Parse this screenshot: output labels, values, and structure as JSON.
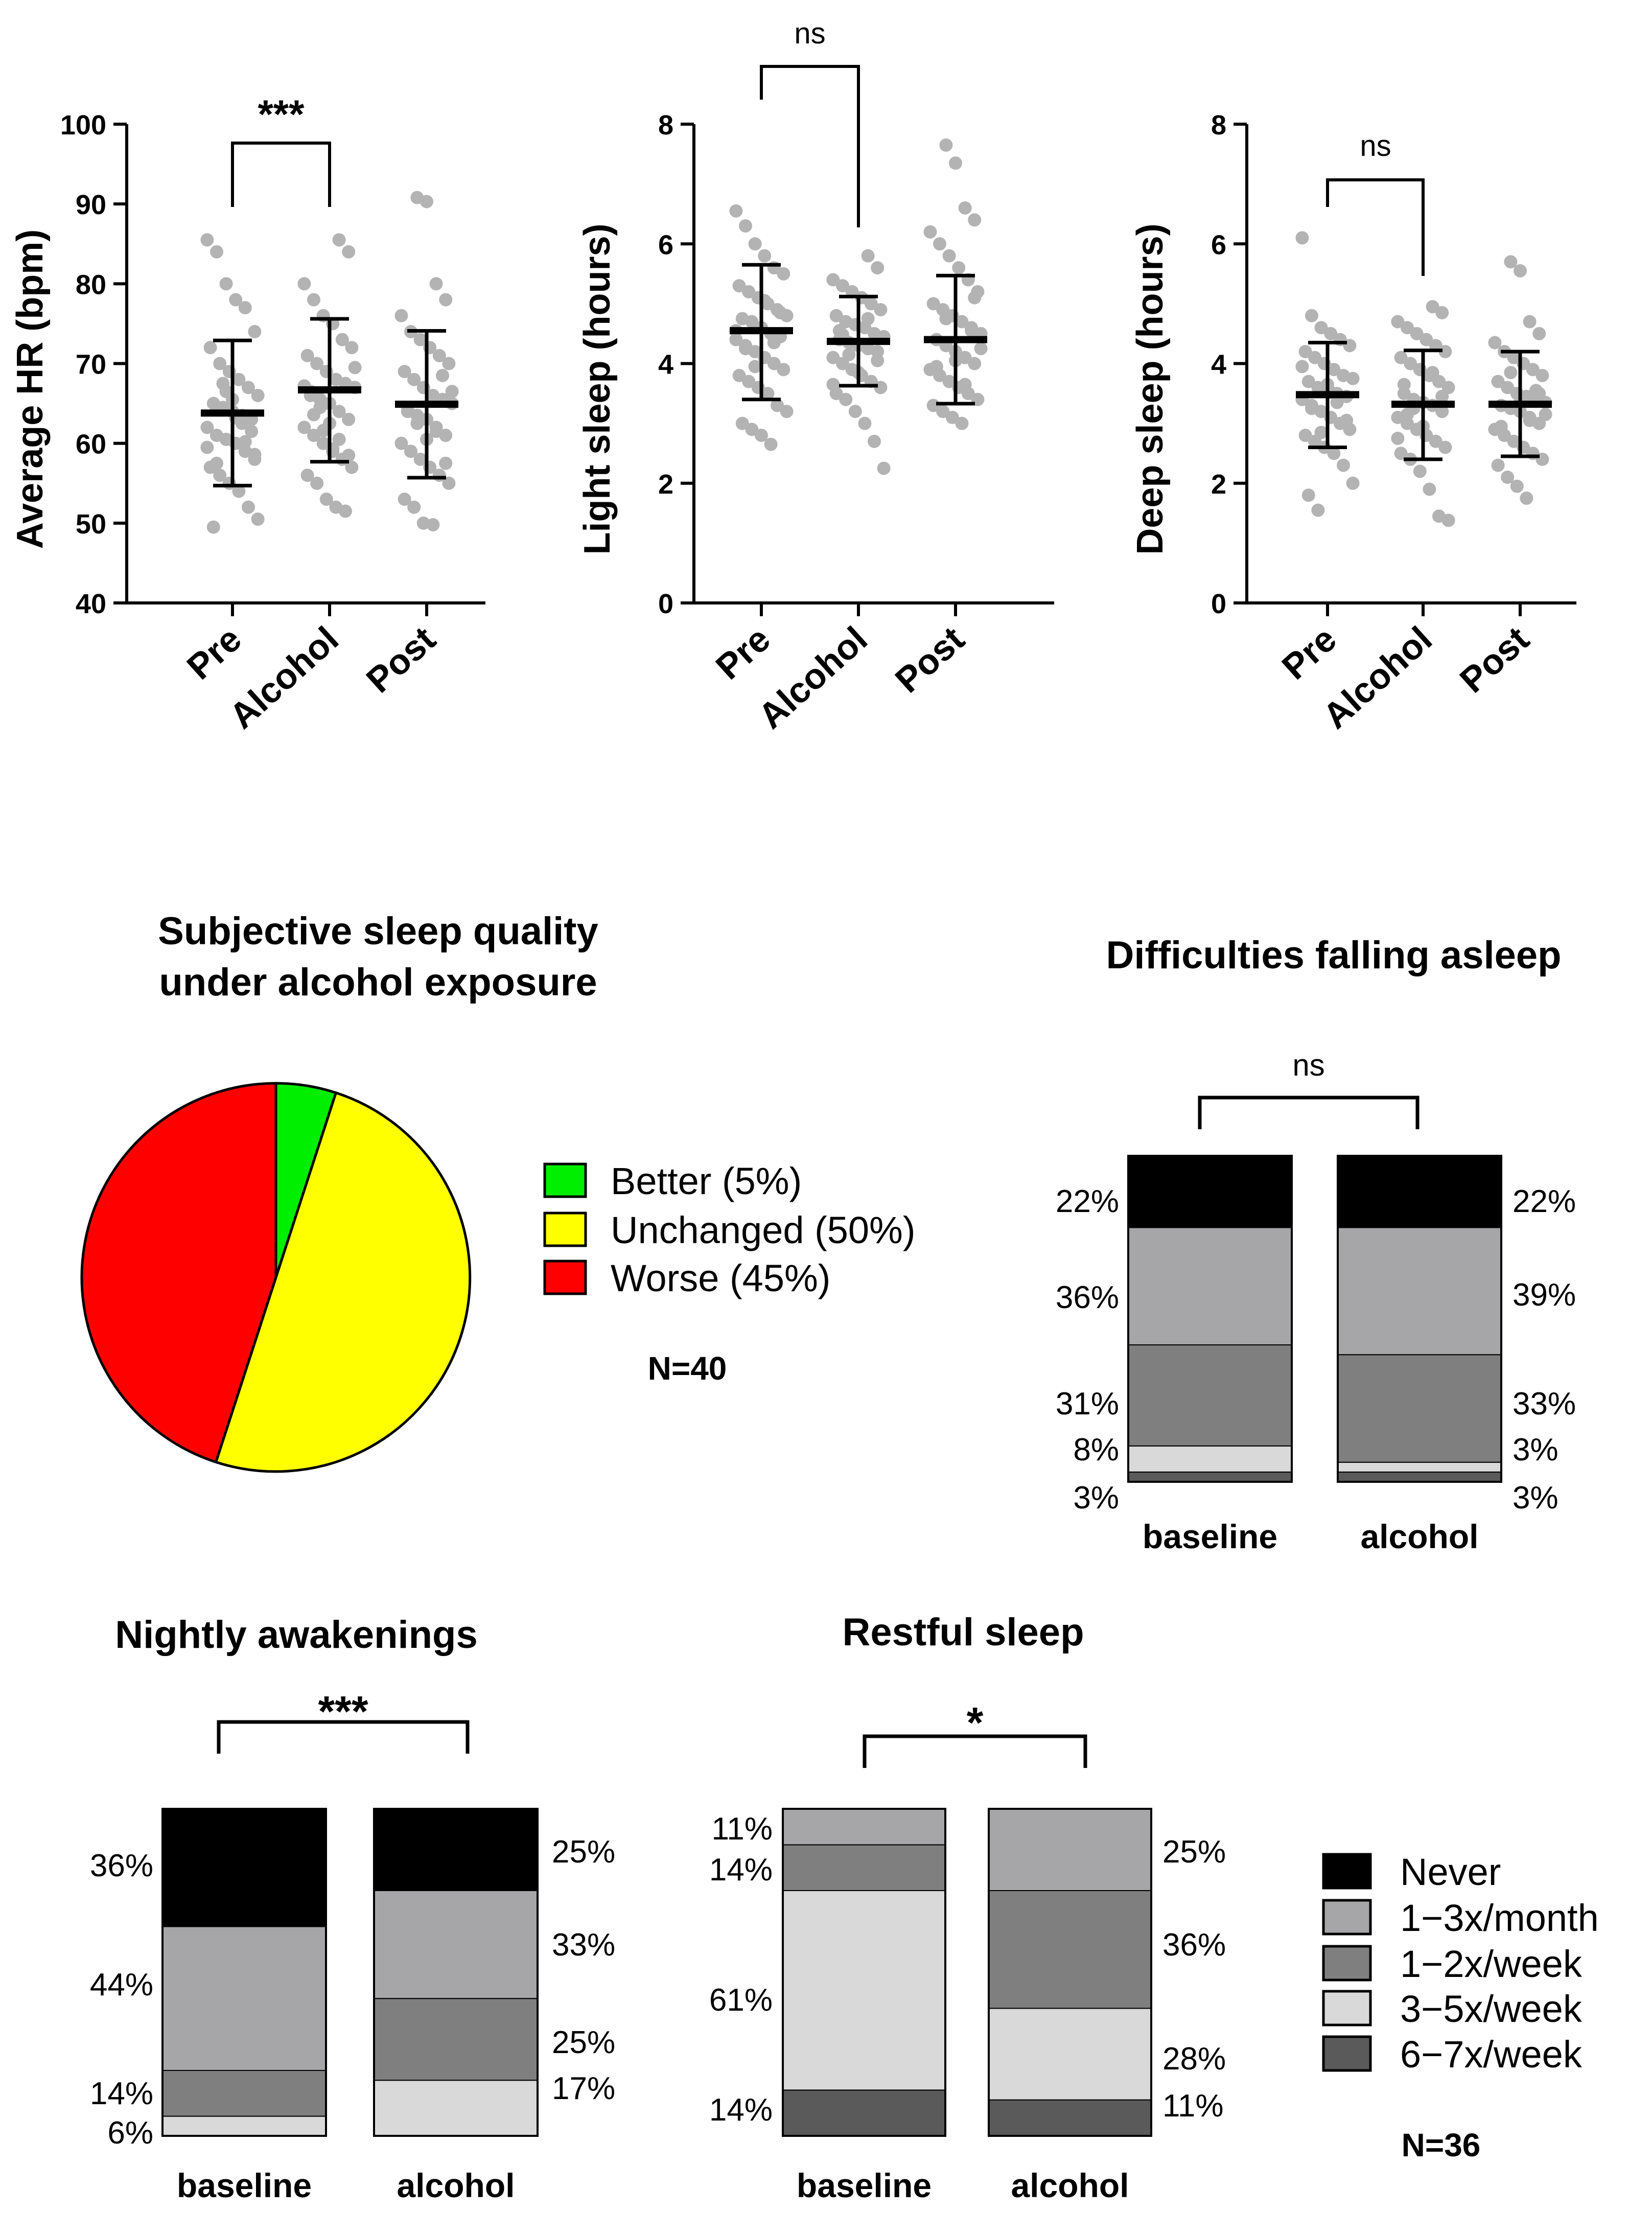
{
  "colors": {
    "point": "#b3b3b3",
    "axis": "#000000",
    "better": "#00ee00",
    "unchanged": "#ffff00",
    "worse": "#ff0000",
    "never": "#000000",
    "m13": "#a6a6a8",
    "w12": "#7f7f80",
    "w35": "#d9d9d9",
    "w67": "#5a5a5a"
  },
  "chart_data": [
    {
      "type": "scatter",
      "title": "",
      "xlabel": "",
      "ylabel": "Average HR (bpm)",
      "ylim": [
        40,
        100
      ],
      "yticks": [
        "40",
        "50",
        "60",
        "70",
        "80",
        "90",
        "100"
      ],
      "categories": [
        "Pre",
        "Alcohol",
        "Post"
      ],
      "means": [
        63.8,
        66.7,
        64.9
      ],
      "sd_low": [
        54.7,
        57.7,
        55.7
      ],
      "sd_high": [
        72.9,
        75.6,
        74.1
      ],
      "significance": {
        "pair": [
          "Pre",
          "Alcohol"
        ],
        "label": "***"
      },
      "points": [
        [
          85.5,
          84,
          80,
          78,
          77,
          74,
          72,
          70,
          69,
          68,
          67,
          66,
          65,
          64.5,
          64,
          63.5,
          63,
          62,
          61,
          60.5,
          60,
          59,
          58,
          57,
          56,
          55,
          54,
          52,
          50.5,
          49.5,
          67.5,
          65.5,
          62.5,
          61.5,
          59.5,
          57.5,
          66.5,
          63.2,
          60.2,
          58.6
        ],
        [
          85.5,
          84,
          80,
          78,
          76,
          75,
          73,
          72,
          71,
          70,
          69,
          68,
          67.5,
          67,
          66,
          65.5,
          65,
          64,
          63,
          62,
          61,
          60,
          59,
          58,
          57,
          56,
          55,
          53,
          52,
          51.5,
          69.5,
          66.5,
          64.5,
          62.5,
          60.5,
          58.5,
          67.2,
          63.6,
          61.6,
          59.3
        ],
        [
          90.8,
          90.3,
          80,
          78,
          76,
          74,
          73,
          72,
          71,
          70,
          69,
          68,
          67,
          66,
          65.5,
          65,
          64,
          63.5,
          63,
          62,
          61,
          60,
          59,
          58,
          57,
          56,
          55,
          53,
          52,
          50,
          49.8,
          68.5,
          66.5,
          64.5,
          62.5,
          60.5,
          61.5,
          57.5
        ]
      ]
    },
    {
      "type": "scatter",
      "title": "",
      "xlabel": "",
      "ylabel": "Light sleep (hours)",
      "ylim": [
        0,
        8
      ],
      "yticks": [
        "0",
        "2",
        "4",
        "6",
        "8"
      ],
      "categories": [
        "Pre",
        "Alcohol",
        "Post"
      ],
      "means": [
        4.55,
        4.37,
        4.4
      ],
      "sd_low": [
        3.4,
        3.63,
        3.33
      ],
      "sd_high": [
        5.65,
        5.12,
        5.47
      ],
      "significance": {
        "pair": [
          "Pre",
          "Alcohol"
        ],
        "label": "ns"
      },
      "points": [
        [
          6.55,
          6.3,
          6.0,
          5.8,
          5.6,
          5.5,
          5.3,
          5.2,
          5.1,
          5.0,
          4.9,
          4.8,
          4.75,
          4.7,
          4.6,
          4.5,
          4.45,
          4.4,
          4.3,
          4.2,
          4.1,
          4.0,
          3.9,
          3.8,
          3.7,
          3.6,
          3.5,
          3.3,
          3.2,
          3.0,
          2.9,
          2.8,
          2.65,
          4.85,
          4.55,
          4.25,
          3.95,
          5.05,
          4.35
        ],
        [
          5.8,
          5.6,
          5.4,
          5.3,
          5.2,
          5.1,
          5.0,
          4.9,
          4.8,
          4.7,
          4.65,
          4.6,
          4.5,
          4.45,
          4.4,
          4.35,
          4.3,
          4.25,
          4.2,
          4.1,
          4.0,
          3.9,
          3.8,
          3.7,
          3.6,
          3.5,
          3.4,
          3.2,
          3.0,
          2.7,
          2.25,
          4.55,
          4.15,
          3.85,
          4.75,
          4.05,
          3.65,
          4.48
        ],
        [
          7.65,
          7.35,
          6.6,
          6.4,
          6.2,
          6.0,
          5.8,
          5.6,
          5.4,
          5.2,
          5.0,
          4.9,
          4.8,
          4.7,
          4.6,
          4.5,
          4.4,
          4.3,
          4.2,
          4.1,
          4.0,
          3.9,
          3.8,
          3.7,
          3.6,
          3.5,
          3.4,
          3.3,
          3.2,
          3.1,
          3.0,
          4.55,
          4.25,
          3.95,
          4.75,
          4.05,
          3.65,
          5.1
        ]
      ]
    },
    {
      "type": "scatter",
      "title": "",
      "xlabel": "",
      "ylabel": "Deep sleep (hours)",
      "ylim": [
        0,
        8
      ],
      "yticks": [
        "0",
        "2",
        "4",
        "6",
        "8"
      ],
      "categories": [
        "Pre",
        "Alcohol",
        "Post"
      ],
      "means": [
        3.48,
        3.32,
        3.32
      ],
      "sd_low": [
        2.6,
        2.4,
        2.45
      ],
      "sd_high": [
        4.35,
        4.22,
        4.2
      ],
      "significance": {
        "pair": [
          "Pre",
          "Alcohol"
        ],
        "label": "ns"
      },
      "points": [
        [
          6.1,
          4.8,
          4.6,
          4.5,
          4.4,
          4.3,
          4.2,
          4.1,
          4.0,
          3.9,
          3.8,
          3.75,
          3.7,
          3.6,
          3.55,
          3.5,
          3.45,
          3.4,
          3.3,
          3.2,
          3.1,
          3.0,
          2.9,
          2.8,
          2.7,
          2.6,
          2.5,
          2.3,
          2.0,
          1.8,
          1.55,
          3.65,
          3.35,
          3.05,
          3.95,
          3.25,
          2.85,
          3.52
        ],
        [
          4.95,
          4.85,
          4.7,
          4.6,
          4.5,
          4.4,
          4.3,
          4.2,
          4.1,
          4.0,
          3.9,
          3.8,
          3.7,
          3.6,
          3.5,
          3.4,
          3.35,
          3.3,
          3.2,
          3.1,
          3.0,
          2.9,
          2.8,
          2.7,
          2.6,
          2.5,
          2.4,
          2.2,
          1.9,
          1.45,
          1.38,
          3.65,
          3.25,
          2.95,
          3.85,
          3.45,
          2.75,
          3.15
        ],
        [
          5.7,
          5.55,
          4.7,
          4.5,
          4.35,
          4.2,
          4.1,
          4.0,
          3.9,
          3.8,
          3.7,
          3.6,
          3.5,
          3.45,
          3.4,
          3.35,
          3.3,
          3.25,
          3.2,
          3.1,
          3.0,
          2.9,
          2.8,
          2.7,
          2.6,
          2.5,
          2.4,
          2.3,
          2.1,
          1.95,
          1.75,
          3.55,
          3.15,
          2.95,
          3.85,
          3.35,
          3.05,
          3.5
        ]
      ]
    },
    {
      "type": "pie",
      "title": "Subjective sleep quality under alcohol exposure",
      "title_lines": [
        "Subjective sleep quality",
        "under alcohol exposure"
      ],
      "slices": [
        {
          "label": "Better (5%)",
          "value": 5,
          "color": "#00ee00"
        },
        {
          "label": "Unchanged (50%)",
          "value": 50,
          "color": "#ffff00"
        },
        {
          "label": "Worse (45%)",
          "value": 45,
          "color": "#ff0000"
        }
      ],
      "n_label": "N=40"
    },
    {
      "type": "bar",
      "stacked": true,
      "title": "Difficulties falling asleep",
      "categories": [
        "baseline",
        "alcohol"
      ],
      "significance": "ns",
      "series": [
        {
          "name": "6-7x/week",
          "values": [
            3,
            3
          ]
        },
        {
          "name": "3-5x/week",
          "values": [
            8,
            3
          ]
        },
        {
          "name": "1-2x/week",
          "values": [
            31,
            33
          ]
        },
        {
          "name": "1-3x/month",
          "values": [
            36,
            39
          ]
        },
        {
          "name": "Never",
          "values": [
            22,
            22
          ]
        }
      ],
      "labels_baseline": [
        "22%",
        "36%",
        "31%",
        "8%",
        "3%"
      ],
      "labels_alcohol": [
        "22%",
        "39%",
        "33%",
        "3%",
        "3%"
      ]
    },
    {
      "type": "bar",
      "stacked": true,
      "title": "Nightly awakenings",
      "categories": [
        "baseline",
        "alcohol"
      ],
      "significance": "***",
      "series": [
        {
          "name": "3-5x/week",
          "values": [
            6,
            17
          ]
        },
        {
          "name": "1-2x/week",
          "values": [
            14,
            25
          ]
        },
        {
          "name": "1-3x/month",
          "values": [
            44,
            33
          ]
        },
        {
          "name": "Never",
          "values": [
            36,
            25
          ]
        }
      ],
      "labels_baseline": [
        "36%",
        "44%",
        "14%",
        "6%"
      ],
      "labels_alcohol": [
        "25%",
        "33%",
        "25%",
        "17%"
      ]
    },
    {
      "type": "bar",
      "stacked": true,
      "title": "Restful sleep",
      "categories": [
        "baseline",
        "alcohol"
      ],
      "significance": "*",
      "series": [
        {
          "name": "6-7x/week",
          "values": [
            14,
            11
          ]
        },
        {
          "name": "3-5x/week",
          "values": [
            61,
            28
          ]
        },
        {
          "name": "1-2x/week",
          "values": [
            14,
            36
          ]
        },
        {
          "name": "1-3x/month",
          "values": [
            11,
            25
          ]
        }
      ],
      "labels_baseline": [
        "11%",
        "14%",
        "61%",
        "14%"
      ],
      "labels_alcohol": [
        "25%",
        "36%",
        "28%",
        "11%"
      ]
    }
  ],
  "legend": {
    "items": [
      {
        "label": "Never",
        "color": "#000000"
      },
      {
        "label": "1−3x/month",
        "color": "#a6a6a8"
      },
      {
        "label": "1−2x/week",
        "color": "#7f7f80"
      },
      {
        "label": "3−5x/week",
        "color": "#d9d9d9"
      },
      {
        "label": "6−7x/week",
        "color": "#5a5a5a"
      }
    ],
    "n_label": "N=36"
  }
}
